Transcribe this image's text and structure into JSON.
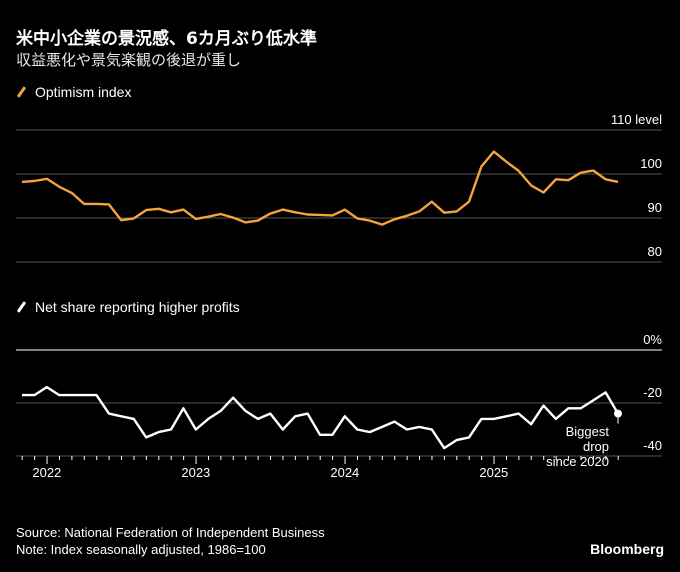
{
  "title": "米中小企業の景況感、6カ月ぶり低水準",
  "subtitle": "収益悪化や景気楽観の後退が重し",
  "footer": {
    "source": "Source: National Federation of Independent Business",
    "note": "Note: Index seasonally adjusted, 1986=100",
    "brand": "Bloomberg"
  },
  "colors": {
    "background": "#000000",
    "optimism": "#f5a33b",
    "profits": "#ffffff",
    "grid": "#555555"
  },
  "chart_data": [
    {
      "type": "line",
      "legend": "Optimism index",
      "unit_label": "level",
      "yticks": [
        80,
        90,
        100,
        110
      ],
      "ylim": [
        80,
        110
      ],
      "x_start": "2021-10",
      "x_end": "2025-10",
      "xtick_labels": [
        "2022",
        "2023",
        "2024",
        "2025"
      ],
      "grid": true,
      "values": [
        98.2,
        98.4,
        98.9,
        97.1,
        95.7,
        93.2,
        93.2,
        93.1,
        89.5,
        89.9,
        91.8,
        92.1,
        91.3,
        91.9,
        89.8,
        90.3,
        90.9,
        90.1,
        89.0,
        89.4,
        91.0,
        91.9,
        91.3,
        90.8,
        90.7,
        90.6,
        91.9,
        89.9,
        89.4,
        88.5,
        89.7,
        90.5,
        91.5,
        93.7,
        91.2,
        91.5,
        93.7,
        101.7,
        105.1,
        102.8,
        100.7,
        97.4,
        95.8,
        98.8,
        98.6,
        100.3,
        100.8,
        98.8,
        98.2
      ]
    },
    {
      "type": "line",
      "legend": "Net share reporting higher profits",
      "unit_label": "%",
      "yticks": [
        0,
        -20,
        -40
      ],
      "ylim": [
        -40,
        0
      ],
      "x_start": "2021-10",
      "x_end": "2025-10",
      "xtick_labels": [
        "2022",
        "2023",
        "2024",
        "2025"
      ],
      "grid": true,
      "values": [
        -17,
        -17,
        -14,
        -17,
        -17,
        -17,
        -17,
        -24,
        -25,
        -26,
        -33,
        -31,
        -30,
        -22,
        -30,
        -26,
        -23,
        -18,
        -23,
        -26,
        -24,
        -30,
        -25,
        -24,
        -32,
        -32,
        -25,
        -30,
        -31,
        -29,
        -27,
        -30,
        -29,
        -30,
        -37,
        -34,
        -33,
        -26,
        -26,
        -25,
        -24,
        -28,
        -21,
        -26,
        -22,
        -22,
        -19,
        -16,
        -24
      ],
      "annotation": [
        "Biggest",
        "drop",
        "since 2020"
      ]
    }
  ]
}
